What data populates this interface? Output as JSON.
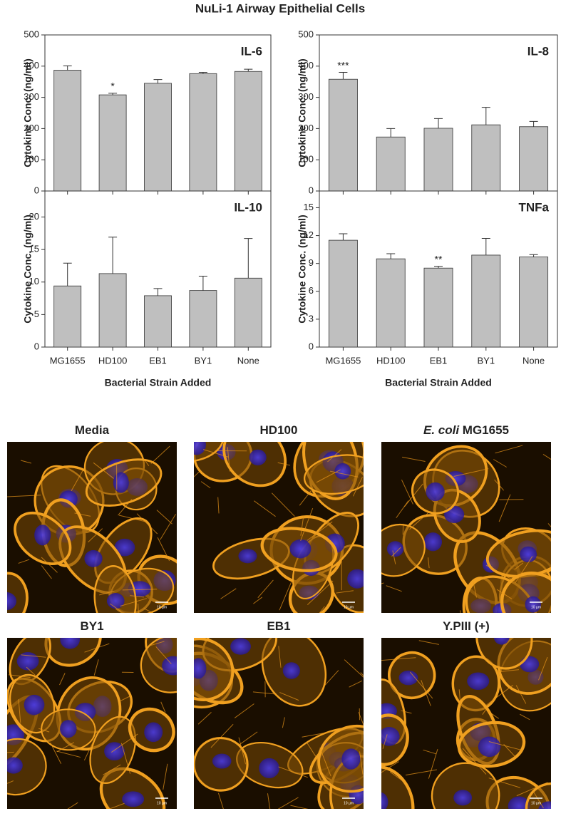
{
  "title": "NuLi-1 Airway Epithelial Cells",
  "chart_data": [
    {
      "type": "bar",
      "title": "IL-6",
      "ylabel": "Cytokine Conc. (ng/ml)",
      "categories": [
        null,
        null,
        null,
        null,
        null
      ],
      "values": [
        387,
        308,
        345,
        376,
        383
      ],
      "errors": [
        14,
        5,
        12,
        4,
        7
      ],
      "annotations": [
        null,
        "*",
        null,
        null,
        null
      ],
      "color": "#bfbfbf",
      "ylim": [
        0,
        500
      ],
      "yticks": [
        0,
        100,
        200,
        300,
        400,
        500
      ]
    },
    {
      "type": "bar",
      "title": "IL-8",
      "ylabel": "Cytokine Conc. (ng/ml)",
      "categories": [
        null,
        null,
        null,
        null,
        null
      ],
      "values": [
        358,
        173,
        201,
        212,
        206
      ],
      "errors": [
        22,
        27,
        31,
        56,
        17
      ],
      "annotations": [
        "***",
        null,
        null,
        null,
        null
      ],
      "color": "#bfbfbf",
      "ylim": [
        0,
        500
      ],
      "yticks": [
        0,
        100,
        200,
        300,
        400,
        500
      ]
    },
    {
      "type": "bar",
      "title": "IL-10",
      "ylabel": "Cytokine Conc. (ng/ml)",
      "xlabel": "Bacterial Strain Added",
      "categories": [
        "MG1655",
        "HD100",
        "EB1",
        "BY1",
        "None"
      ],
      "values": [
        9.4,
        11.3,
        7.9,
        8.7,
        10.6
      ],
      "errors": [
        3.5,
        5.6,
        1.1,
        2.2,
        6.1
      ],
      "annotations": [
        null,
        null,
        null,
        null,
        null
      ],
      "color": "#bfbfbf",
      "ylim": [
        0,
        24
      ],
      "yticks": [
        0,
        5,
        10,
        15,
        20
      ]
    },
    {
      "type": "bar",
      "title": "TNFa",
      "ylabel": "Cytokine Conc. (ng/ml)",
      "xlabel": "Bacterial Strain Added",
      "categories": [
        "MG1655",
        "HD100",
        "EB1",
        "BY1",
        "None"
      ],
      "values": [
        11.5,
        9.5,
        8.5,
        9.9,
        9.7
      ],
      "errors": [
        0.7,
        0.55,
        0.2,
        1.8,
        0.25
      ],
      "annotations": [
        null,
        null,
        "**",
        null,
        null
      ],
      "color": "#bfbfbf",
      "ylim": [
        0,
        16.8
      ],
      "yticks": [
        0,
        3,
        6,
        9,
        12,
        15
      ]
    }
  ],
  "images": [
    {
      "label": "Media",
      "scale_bar": "10 µm"
    },
    {
      "label": "HD100",
      "scale_bar": "10 µm"
    },
    {
      "label_italic": "E. coli",
      "label": "MG1655",
      "scale_bar": "10 µm"
    },
    {
      "label": "BY1",
      "scale_bar": "10 µm"
    },
    {
      "label": "EB1",
      "scale_bar": "10 µm"
    },
    {
      "label": "Y.PIII (+)",
      "scale_bar": "10 µm"
    }
  ]
}
